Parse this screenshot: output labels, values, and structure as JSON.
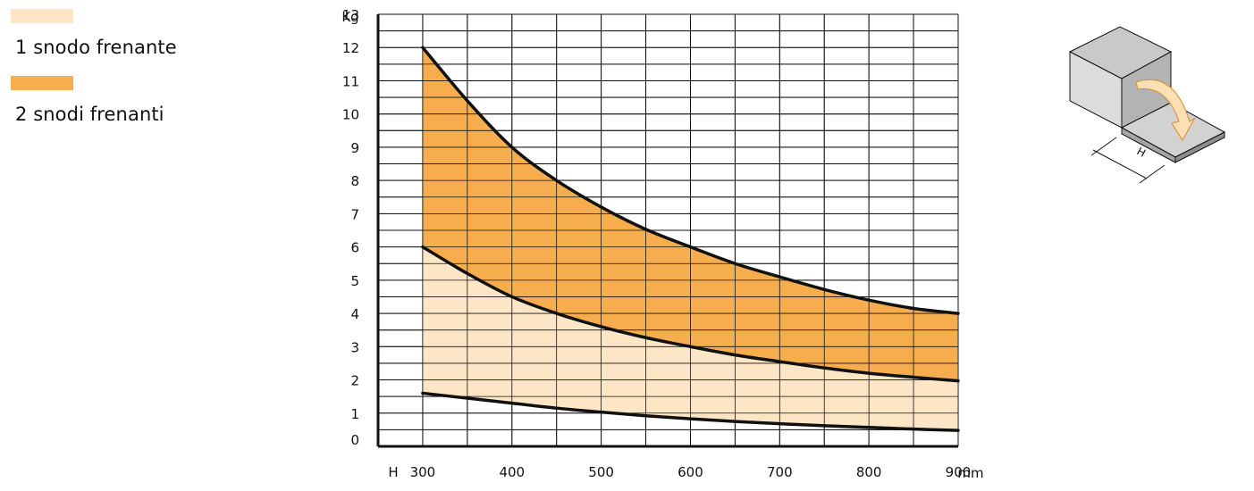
{
  "legend": [
    {
      "label": "1 snodo frenante",
      "color": "#fde6c6"
    },
    {
      "label": "2 snodi frenanti",
      "color": "#f6ad4e"
    }
  ],
  "diagram": {
    "dimension_label": "H"
  },
  "chart_data": {
    "type": "area",
    "title": "",
    "xlabel": "H",
    "x_unit": "mm",
    "ylabel": "Kg",
    "xlim": [
      250,
      900
    ],
    "ylim": [
      0,
      13
    ],
    "x_ticks": [
      300,
      400,
      500,
      600,
      700,
      800,
      900
    ],
    "y_ticks": [
      0,
      1,
      2,
      3,
      4,
      5,
      6,
      7,
      8,
      9,
      10,
      11,
      12,
      13
    ],
    "grid": true,
    "legend_position": "top-left",
    "x": [
      300,
      350,
      400,
      450,
      500,
      550,
      600,
      650,
      700,
      750,
      800,
      850,
      900
    ],
    "series": [
      {
        "name": "",
        "values": [
          1.6,
          1.45,
          1.3,
          1.15,
          1.03,
          0.92,
          0.83,
          0.75,
          0.68,
          0.62,
          0.57,
          0.52,
          0.48
        ]
      },
      {
        "name": "1 snodo frenante",
        "values": [
          6.0,
          5.2,
          4.5,
          4.0,
          3.6,
          3.27,
          3.0,
          2.75,
          2.55,
          2.36,
          2.2,
          2.08,
          1.97
        ]
      },
      {
        "name": "2 snodi frenanti",
        "values": [
          12.0,
          10.4,
          9.0,
          8.0,
          7.2,
          6.53,
          6.0,
          5.5,
          5.1,
          4.72,
          4.4,
          4.15,
          4.0
        ]
      }
    ]
  }
}
